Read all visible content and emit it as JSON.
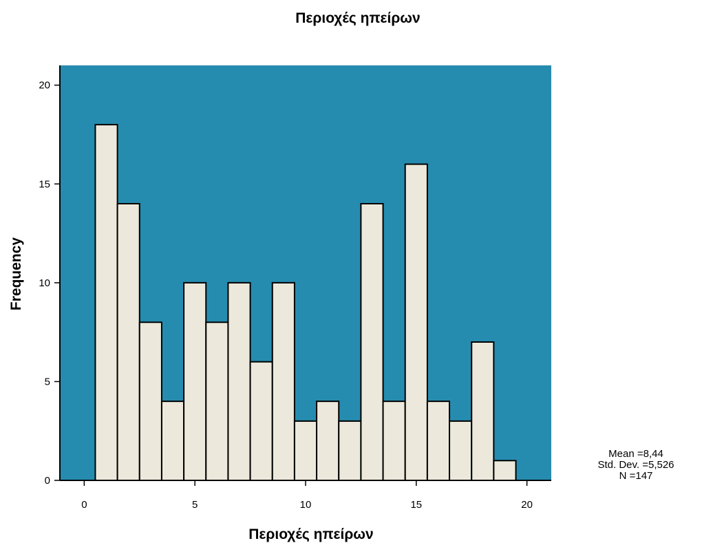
{
  "chart_data": {
    "type": "bar",
    "title": "Περιοχές ηπείρων",
    "xlabel": "Περιοχές ηπείρων",
    "ylabel": "Frequency",
    "bin_width": 1,
    "bin_centers": [
      1,
      2,
      3,
      4,
      5,
      6,
      7,
      8,
      9,
      10,
      11,
      12,
      13,
      14,
      15,
      16,
      17,
      18,
      19
    ],
    "values": [
      18,
      14,
      8,
      4,
      10,
      8,
      10,
      6,
      10,
      3,
      4,
      3,
      14,
      4,
      16,
      4,
      3,
      7,
      1
    ],
    "xlim": [
      -1.1,
      21.1
    ],
    "ylim": [
      0,
      21
    ],
    "x_ticks": [
      0,
      5,
      10,
      15,
      20
    ],
    "y_ticks": [
      0,
      5,
      10,
      15,
      20
    ],
    "grid": false,
    "stats": {
      "mean": "Mean =8,44",
      "std_dev": "Std. Dev. =5,526",
      "n": "N =147"
    },
    "colors": {
      "plot_background": "#268caf",
      "bar_fill": "#ece9dc",
      "bar_stroke": "#000000"
    }
  }
}
